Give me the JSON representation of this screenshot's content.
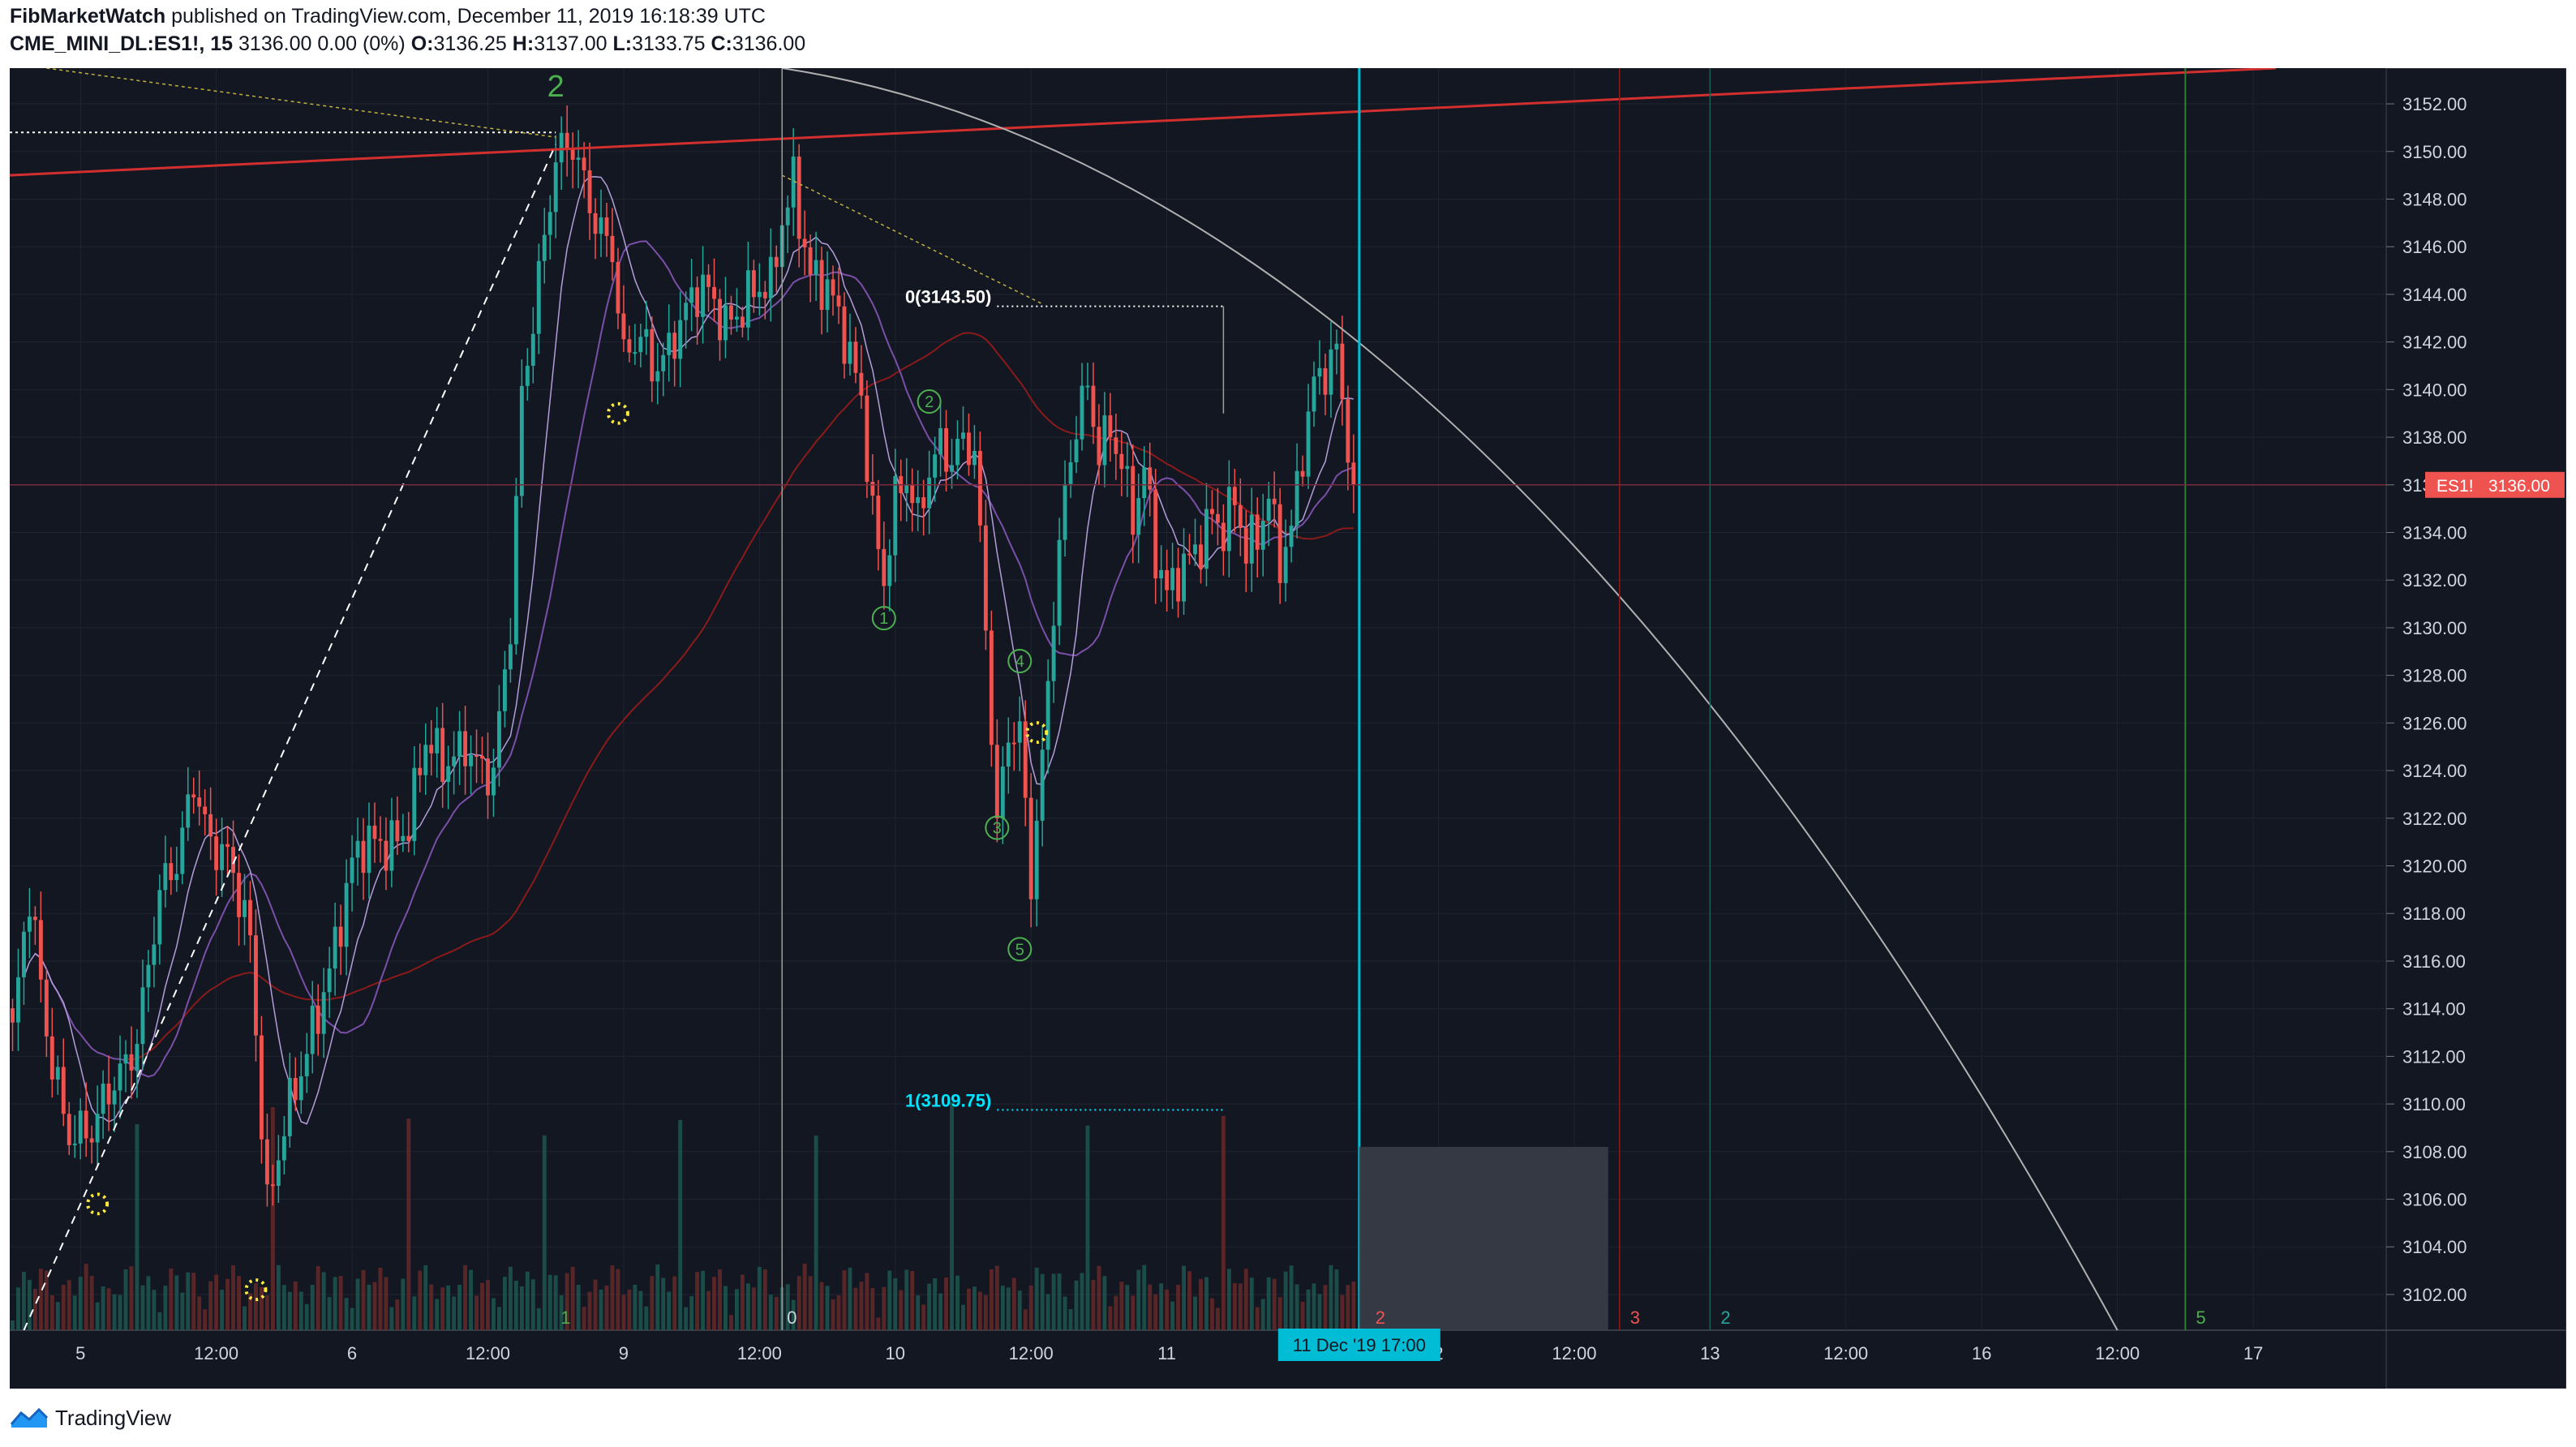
{
  "header": {
    "author": "FibMarketWatch",
    "published": "published on TradingView.com, December 11, 2019 16:18:39 UTC",
    "symbol": "CME_MINI_DL:ES1!, 15",
    "last": "3136.00",
    "change": "0.00 (0%)",
    "o_label": "O:",
    "o": "3136.25",
    "h_label": "H:",
    "h": "3137.00",
    "l_label": "L:",
    "l": "3133.75",
    "c_label": "C:",
    "c": "3136.00"
  },
  "footer": {
    "brand": "TradingView"
  },
  "colors": {
    "background": "#131722",
    "up": "#26a69a",
    "down": "#ef5350",
    "grid": "#1f2430",
    "fib": "#ffffff",
    "fib1": "#00e5ff",
    "timeline": "#00bcd4",
    "trend": "#d32f2f",
    "wave": "#4caf50",
    "yellow": "#ffeb3b",
    "priceTag": "#ef5350"
  },
  "chart_data": {
    "type": "candlestick",
    "title": "CME_MINI_DL:ES1!, 15",
    "ylim": [
      3100.5,
      3153.5
    ],
    "y_ticks": [
      "3152.00",
      "3150.00",
      "3148.00",
      "3146.00",
      "3144.00",
      "3142.00",
      "3140.00",
      "3138.00",
      "3136.00",
      "3134.00",
      "3132.00",
      "3130.00",
      "3128.00",
      "3126.00",
      "3124.00",
      "3122.00",
      "3120.00",
      "3118.00",
      "3116.00",
      "3114.00",
      "3112.00",
      "3110.00",
      "3108.00",
      "3106.00",
      "3104.00",
      "3102.00"
    ],
    "x_ticks": [
      {
        "bar": 12,
        "label": "5"
      },
      {
        "bar": 36,
        "label": "12:00"
      },
      {
        "bar": 60,
        "label": "6"
      },
      {
        "bar": 84,
        "label": "12:00"
      },
      {
        "bar": 108,
        "label": "9"
      },
      {
        "bar": 132,
        "label": "12:00"
      },
      {
        "bar": 156,
        "label": "10"
      },
      {
        "bar": 180,
        "label": "12:00"
      },
      {
        "bar": 204,
        "label": "11"
      },
      {
        "bar": 252,
        "label": "2"
      },
      {
        "bar": 276,
        "label": "12:00"
      },
      {
        "bar": 300,
        "label": "13"
      },
      {
        "bar": 324,
        "label": "12:00"
      },
      {
        "bar": 348,
        "label": "16"
      },
      {
        "bar": 372,
        "label": "12:00"
      },
      {
        "bar": 396,
        "label": "17"
      }
    ],
    "bars_total": 420,
    "last_bar": 237,
    "series": [
      {
        "name": "ES1!",
        "anchors": [
          [
            0,
            3113
          ],
          [
            3,
            3118.5
          ],
          [
            6,
            3113
          ],
          [
            10,
            3109
          ],
          [
            14,
            3108.5
          ],
          [
            18,
            3111
          ],
          [
            22,
            3113
          ],
          [
            26,
            3118.5
          ],
          [
            29,
            3120
          ],
          [
            32,
            3124
          ],
          [
            35,
            3121
          ],
          [
            38,
            3120
          ],
          [
            42,
            3117
          ],
          [
            45,
            3106
          ],
          [
            48,
            3109
          ],
          [
            51,
            3111
          ],
          [
            53,
            3113
          ],
          [
            56,
            3116
          ],
          [
            60,
            3120
          ],
          [
            62,
            3120.5
          ],
          [
            66,
            3121
          ],
          [
            70,
            3122
          ],
          [
            73,
            3125
          ],
          [
            76,
            3124
          ],
          [
            80,
            3125.5
          ],
          [
            83,
            3124
          ],
          [
            85,
            3123.5
          ],
          [
            88,
            3130
          ],
          [
            90,
            3140
          ],
          [
            93,
            3145
          ],
          [
            96,
            3149.5
          ],
          [
            99,
            3150
          ],
          [
            102,
            3148
          ],
          [
            106,
            3146
          ],
          [
            108,
            3141
          ],
          [
            111,
            3142
          ],
          [
            113,
            3141
          ],
          [
            116,
            3142
          ],
          [
            118,
            3143
          ],
          [
            122,
            3144
          ],
          [
            126,
            3143
          ],
          [
            130,
            3144
          ],
          [
            134,
            3144
          ],
          [
            136,
            3147
          ],
          [
            138,
            3149
          ],
          [
            141,
            3145
          ],
          [
            144,
            3144
          ],
          [
            147,
            3142
          ],
          [
            150,
            3140
          ],
          [
            152,
            3135
          ],
          [
            154,
            3132
          ],
          [
            156,
            3135
          ],
          [
            158,
            3136
          ],
          [
            160,
            3134.5
          ],
          [
            162,
            3137
          ],
          [
            164,
            3138
          ],
          [
            166,
            3137
          ],
          [
            168,
            3137.5
          ],
          [
            170,
            3137
          ],
          [
            172,
            3130
          ],
          [
            174,
            3122
          ],
          [
            176,
            3126
          ],
          [
            178,
            3125.5
          ],
          [
            180,
            3119
          ],
          [
            182,
            3124
          ],
          [
            184,
            3131
          ],
          [
            186,
            3136
          ],
          [
            188,
            3139
          ],
          [
            190,
            3140
          ],
          [
            192,
            3137
          ],
          [
            194,
            3138
          ],
          [
            196,
            3137
          ],
          [
            198,
            3135
          ],
          [
            200,
            3137
          ],
          [
            202,
            3133
          ],
          [
            204,
            3131
          ],
          [
            206,
            3132
          ],
          [
            208,
            3133
          ],
          [
            210,
            3134
          ],
          [
            212,
            3135
          ],
          [
            214,
            3134
          ],
          [
            216,
            3135
          ],
          [
            218,
            3133
          ],
          [
            220,
            3134
          ],
          [
            222,
            3136
          ],
          [
            224,
            3133
          ],
          [
            226,
            3134
          ],
          [
            228,
            3137
          ],
          [
            230,
            3140
          ],
          [
            232,
            3141
          ],
          [
            234,
            3142
          ],
          [
            236,
            3138
          ],
          [
            237,
            3136
          ]
        ]
      }
    ],
    "annotations": {
      "price_tag": {
        "symbol": "ES1!",
        "value": "3136.00",
        "price": 3136
      },
      "fib_labels": {
        "zero": "0(3143.50)",
        "one": "1(3109.75)"
      },
      "fib_levels": {
        "zero": 3143.5,
        "one": 3109.75
      },
      "waves": [
        "1",
        "2",
        "3",
        "4",
        "5"
      ],
      "major_wave": "2",
      "cycle_labels": [
        "1",
        "0",
        "2",
        "3",
        "2",
        "5"
      ],
      "time_label": "11 Dec '19   17:00"
    }
  }
}
